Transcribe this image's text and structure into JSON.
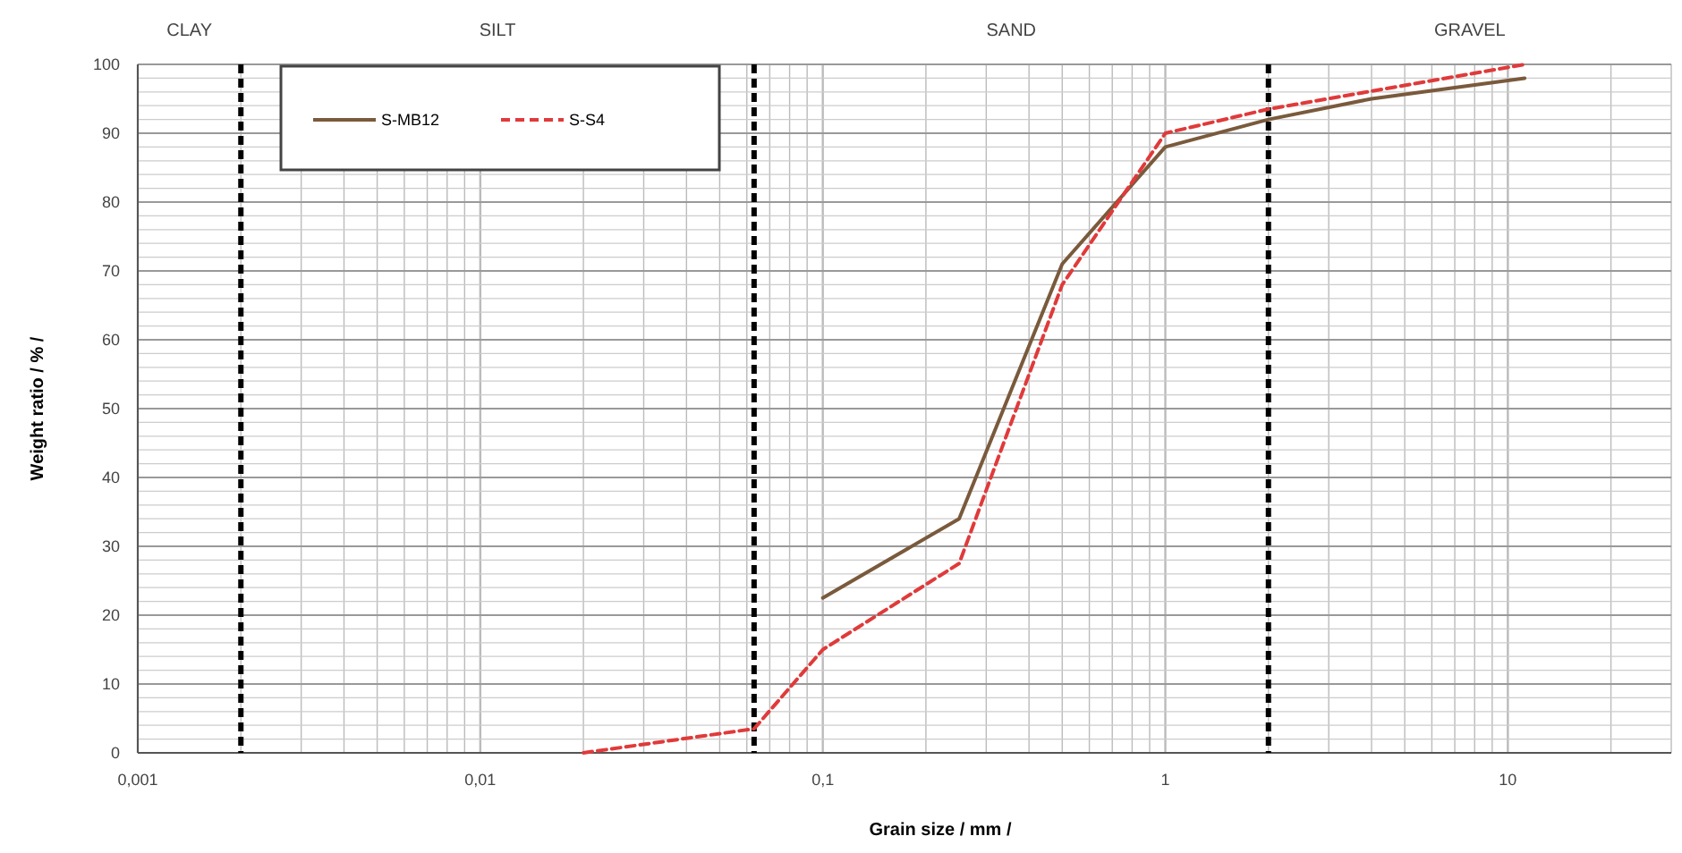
{
  "chart_data": {
    "type": "line",
    "xlabel": "Grain size  / mm /",
    "ylabel": "Weight ratio  / % /",
    "log": "x",
    "xlim": [
      0.001,
      30
    ],
    "xticks": [
      {
        "value": 0.001,
        "label": "0,001"
      },
      {
        "value": 0.01,
        "label": "0,01"
      },
      {
        "value": 0.1,
        "label": "0,1"
      },
      1,
      10
    ],
    "ylim": [
      0,
      100
    ],
    "yticks": [
      0,
      10,
      20,
      30,
      40,
      50,
      60,
      70,
      80,
      90,
      100
    ],
    "grid": true,
    "legend": "top left",
    "marker": "none",
    "series": [
      {
        "name": "S-MB12",
        "color": "#7a5a3c",
        "line_style": "solid",
        "x": [
          0.1,
          0.25,
          0.5,
          1,
          2,
          4,
          11.2
        ],
        "values": [
          22.5,
          34,
          71,
          88,
          92,
          95,
          98
        ]
      },
      {
        "name": "S-S4",
        "color": "#e03a3a",
        "line_style": "dashed",
        "x": [
          0.02,
          0.063,
          0.1,
          0.25,
          0.5,
          1,
          2,
          11.2
        ],
        "values": [
          0,
          3.5,
          15,
          27.5,
          68,
          90,
          93.5,
          100
        ]
      }
    ],
    "ref_lines": [
      {
        "axis": "x",
        "value": 0.002,
        "color": "#000000",
        "line_style": "dashed"
      },
      {
        "axis": "x",
        "value": 0.063,
        "color": "#000000",
        "line_style": "dashed"
      },
      {
        "axis": "x",
        "value": 2,
        "color": "#000000",
        "line_style": "dashed"
      }
    ],
    "annotations": [
      "CLAY",
      "SILT",
      "SAND",
      "GRAVEL"
    ]
  }
}
